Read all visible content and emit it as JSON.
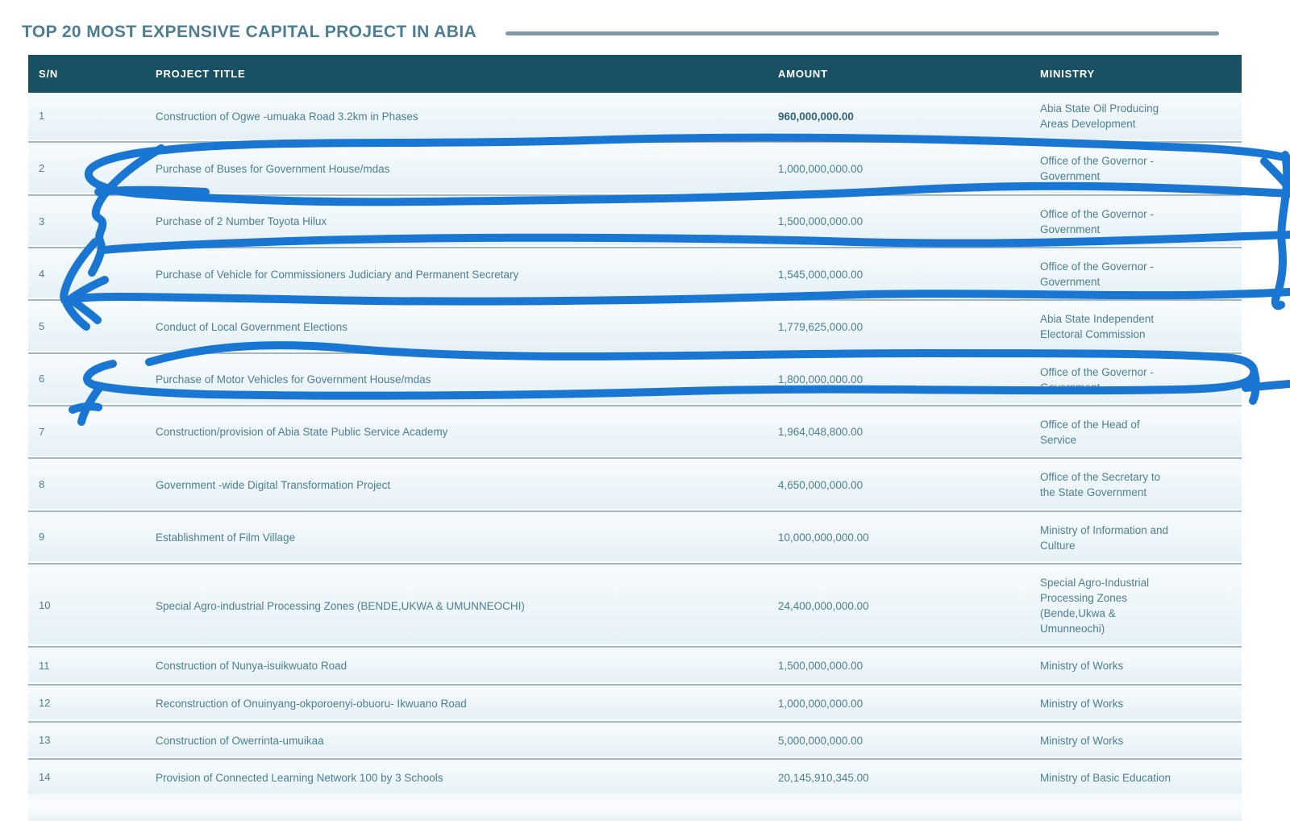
{
  "page": {
    "title": "TOP 20 MOST EXPENSIVE CAPITAL PROJECT IN ABIA"
  },
  "table": {
    "columns": [
      "S/N",
      "PROJECT TITLE",
      "AMOUNT",
      "MINISTRY"
    ],
    "rows": [
      {
        "sn": "1",
        "title": "Construction of Ogwe -umuaka Road 3.2km in Phases",
        "amount": "960,000,000.00",
        "amount_bold": true,
        "ministry": "Abia State Oil Producing Areas Development"
      },
      {
        "sn": "2",
        "title": "Purchase of Buses for Government House/mdas",
        "amount": "1,000,000,000.00",
        "ministry": "Office of the Governor - Government"
      },
      {
        "sn": "3",
        "title": "Purchase of 2 Number Toyota Hilux",
        "amount": "1,500,000,000.00",
        "ministry": "Office of the Governor - Government"
      },
      {
        "sn": "4",
        "title": "Purchase of Vehicle for Commissioners Judiciary and Permanent Secretary",
        "amount": "1,545,000,000.00",
        "ministry": "Office of the Governor - Government"
      },
      {
        "sn": "5",
        "title": "Conduct of Local Government Elections",
        "amount": "1,779,625,000.00",
        "ministry": "Abia State Independent Electoral Commission"
      },
      {
        "sn": "6",
        "title": "Purchase of Motor Vehicles for Government House/mdas",
        "amount": "1,800,000,000.00",
        "ministry": "Office of the Governor - Government"
      },
      {
        "sn": "7",
        "title": "Construction/provision of Abia State Public Service Academy",
        "amount": "1,964,048,800.00",
        "ministry": "Office of the Head of Service"
      },
      {
        "sn": "8",
        "title": "Government -wide Digital Transformation Project",
        "amount": "4,650,000,000.00",
        "ministry": "Office of the Secretary to the State Government"
      },
      {
        "sn": "9",
        "title": "Establishment of Film Village",
        "amount": "10,000,000,000.00",
        "ministry": "Ministry of Information and Culture"
      },
      {
        "sn": "10",
        "title": "Special Agro-industrial Processing Zones (BENDE,UKWA & UMUNNEOCHI)",
        "amount": "24,400,000,000.00",
        "ministry": "Special Agro-Industrial Processing Zones (Bende,Ukwa & Umunneochi)"
      },
      {
        "sn": "11",
        "title": "Construction of Nunya-isuikwuato Road",
        "amount": "1,500,000,000.00",
        "ministry": "Ministry of Works"
      },
      {
        "sn": "12",
        "title": "Reconstruction of Onuinyang-okporoenyi-obuoru- Ikwuano Road",
        "amount": "1,000,000,000.00",
        "ministry": "Ministry of Works"
      },
      {
        "sn": "13",
        "title": "Construction of Owerrinta-umuikaa",
        "amount": "5,000,000,000.00",
        "ministry": "Ministry of Works"
      },
      {
        "sn": "14",
        "title": "Provision of Connected Learning Network 100 by 3 Schools",
        "amount": "20,145,910,345.00",
        "ministry": "Ministry of Basic Education"
      }
    ]
  },
  "annotations": {
    "color": "#1976d3",
    "marked_rows": [
      2,
      3,
      4,
      6
    ],
    "has_left_arrow": true
  },
  "colors": {
    "header_bg": "#1a5063",
    "header_text": "#ffffff",
    "title_text": "#4d7d91",
    "title_line": "#7e99a4",
    "body_text": "#4e7e92",
    "row_separator": "#a2b7c0"
  }
}
